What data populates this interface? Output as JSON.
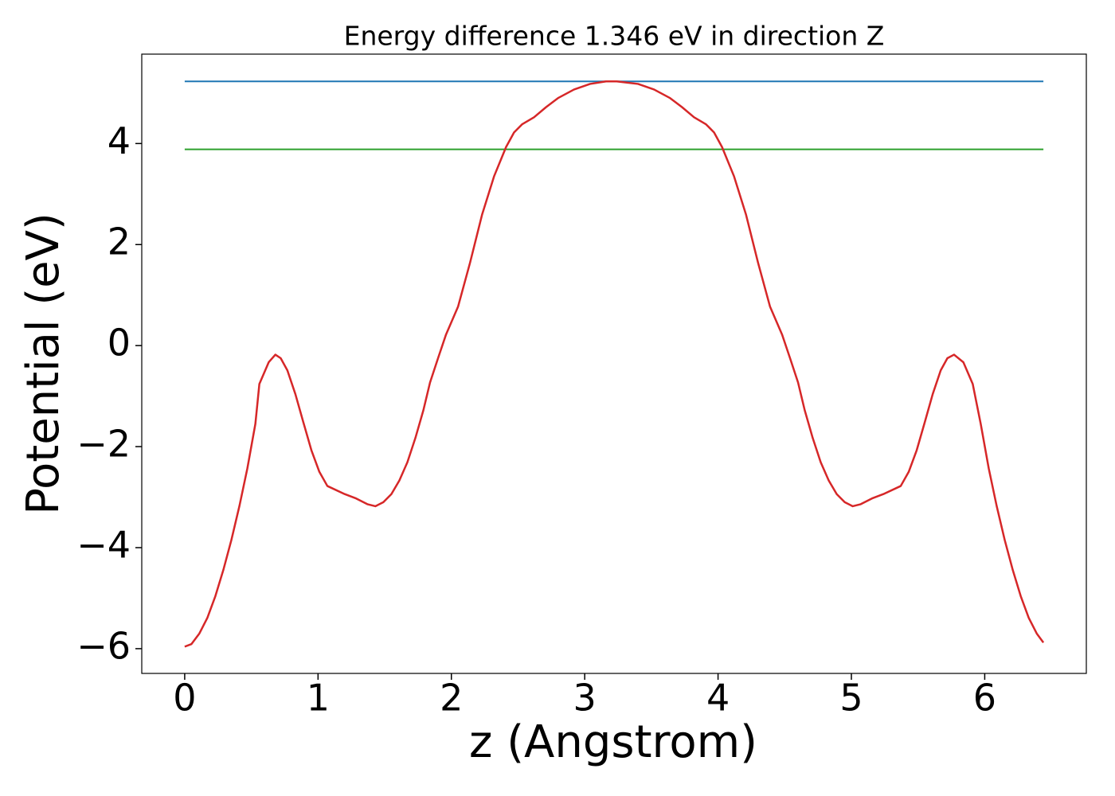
{
  "chart_data": {
    "type": "line",
    "title": "Energy difference 1.346 eV in direction Z",
    "xlabel": "z (Angstrom)",
    "ylabel": "Potential (eV)",
    "xlim": [
      -0.322,
      6.762
    ],
    "ylim": [
      -6.49,
      5.77
    ],
    "xticks": [
      0,
      1,
      2,
      3,
      4,
      5,
      6
    ],
    "yticks": [
      {
        "value": -6,
        "label": "−6"
      },
      {
        "value": -4,
        "label": "−4"
      },
      {
        "value": -2,
        "label": "−2"
      },
      0,
      2,
      4
    ],
    "grid": false,
    "series": [
      {
        "color": "#1f77b4",
        "x": [
          0,
          6.44
        ],
        "values": [
          5.23,
          5.23
        ]
      },
      {
        "color": "#2ca02c",
        "x": [
          0,
          6.44
        ],
        "values": [
          3.884,
          3.884
        ]
      },
      {
        "color": "#d62728",
        "x": [
          0,
          0.05,
          0.11,
          0.17,
          0.23,
          0.29,
          0.35,
          0.41,
          0.47,
          0.53,
          0.56,
          0.63,
          0.68,
          0.72,
          0.77,
          0.83,
          0.89,
          0.95,
          1.01,
          1.07,
          1.2,
          1.28,
          1.37,
          1.43,
          1.49,
          1.55,
          1.61,
          1.67,
          1.73,
          1.79,
          1.84,
          1.9,
          1.96,
          2.05,
          2.14,
          2.23,
          2.32,
          2.41,
          2.47,
          2.53,
          2.62,
          2.71,
          2.8,
          2.92,
          3.04,
          3.16,
          3.24,
          3.4,
          3.52,
          3.64,
          3.73,
          3.82,
          3.91,
          3.97,
          4.03,
          4.12,
          4.21,
          4.3,
          4.39,
          4.48,
          4.54,
          4.6,
          4.65,
          4.71,
          4.77,
          4.83,
          4.89,
          4.95,
          5.01,
          5.07,
          5.16,
          5.24,
          5.37,
          5.43,
          5.49,
          5.55,
          5.61,
          5.67,
          5.72,
          5.77,
          5.84,
          5.91,
          5.97,
          6.03,
          6.09,
          6.15,
          6.21,
          6.27,
          6.33,
          6.39,
          6.44
        ],
        "values": [
          -5.96,
          -5.91,
          -5.7,
          -5.39,
          -4.96,
          -4.44,
          -3.85,
          -3.18,
          -2.43,
          -1.55,
          -0.76,
          -0.33,
          -0.18,
          -0.25,
          -0.49,
          -0.96,
          -1.52,
          -2.07,
          -2.5,
          -2.78,
          -2.94,
          -3.02,
          -3.14,
          -3.18,
          -3.1,
          -2.94,
          -2.67,
          -2.31,
          -1.83,
          -1.28,
          -0.73,
          -0.25,
          0.22,
          0.77,
          1.64,
          2.59,
          3.35,
          3.93,
          4.22,
          4.38,
          4.52,
          4.72,
          4.9,
          5.07,
          5.18,
          5.23,
          5.23,
          5.18,
          5.07,
          4.9,
          4.72,
          4.52,
          4.38,
          4.22,
          3.93,
          3.35,
          2.59,
          1.64,
          0.77,
          0.22,
          -0.25,
          -0.73,
          -1.28,
          -1.83,
          -2.31,
          -2.67,
          -2.94,
          -3.1,
          -3.18,
          -3.14,
          -3.02,
          -2.94,
          -2.78,
          -2.5,
          -2.07,
          -1.52,
          -0.96,
          -0.49,
          -0.25,
          -0.18,
          -0.33,
          -0.76,
          -1.55,
          -2.43,
          -3.18,
          -3.85,
          -4.44,
          -4.96,
          -5.39,
          -5.7,
          -5.88
        ]
      }
    ]
  }
}
